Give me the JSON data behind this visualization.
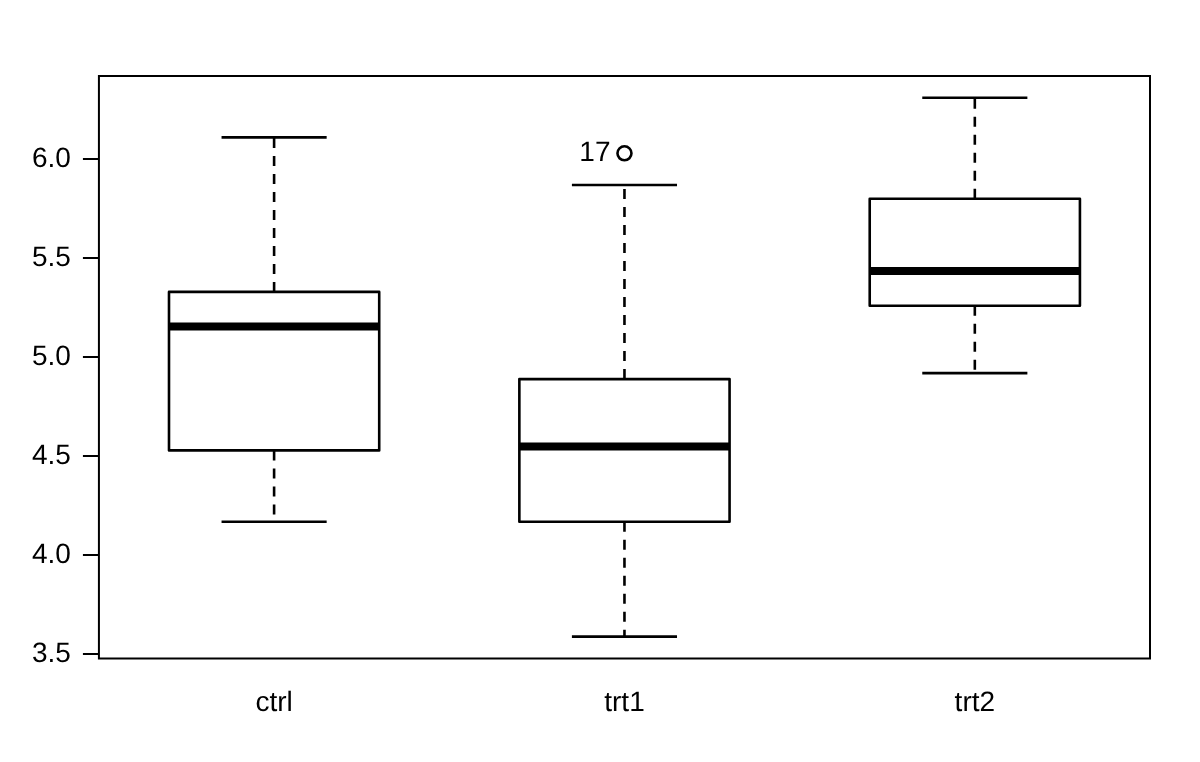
{
  "chart_data": {
    "type": "box",
    "categories": [
      "ctrl",
      "trt1",
      "trt2"
    ],
    "boxes": [
      {
        "low": 4.17,
        "q1": 4.53,
        "median": 5.155,
        "q3": 5.33,
        "high": 6.11
      },
      {
        "low": 3.59,
        "q1": 4.17,
        "median": 4.55,
        "q3": 4.89,
        "high": 5.87,
        "outliers": [
          6.03
        ]
      },
      {
        "low": 4.92,
        "q1": 5.26,
        "median": 5.435,
        "q3": 5.8,
        "high": 6.31
      }
    ],
    "ylim": [
      3.48,
      6.42
    ],
    "yticks": [
      {
        "value": 3.5,
        "label": "3.5"
      },
      {
        "value": 4,
        "label": "4.0"
      },
      {
        "value": 4.5,
        "label": "4.5"
      },
      {
        "value": 5,
        "label": "5.0"
      },
      {
        "value": 5.5,
        "label": "5.5"
      },
      {
        "value": 6,
        "label": "6.0"
      }
    ],
    "annotations": [
      "17"
    ],
    "grid": false,
    "legend": false
  }
}
